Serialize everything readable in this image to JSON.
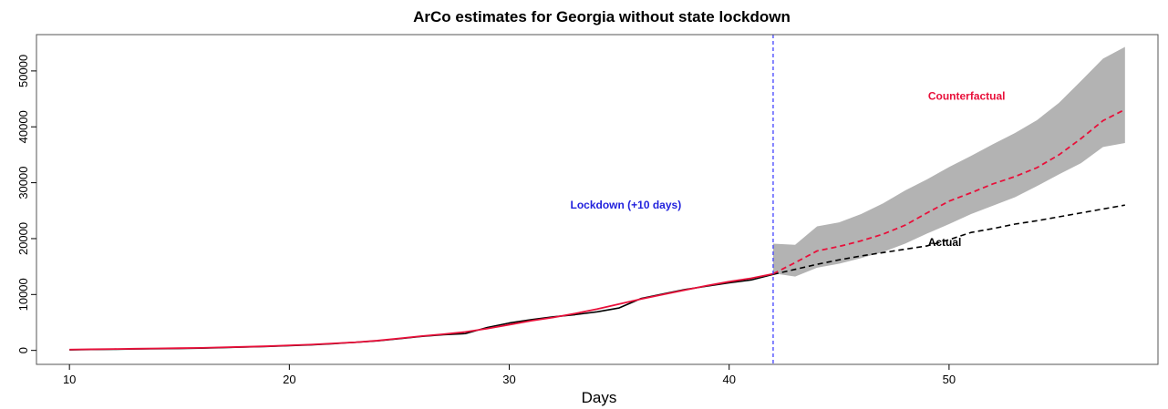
{
  "chart_data": {
    "type": "line",
    "title": "ArCo estimates for Georgia without state lockdown",
    "xlabel": "Days",
    "ylabel": "",
    "xlim": [
      8.5,
      59.5
    ],
    "ylim": [
      -2500,
      56500
    ],
    "x_ticks": [
      10,
      20,
      30,
      40,
      50
    ],
    "y_ticks": [
      0,
      10000,
      20000,
      30000,
      40000,
      50000
    ],
    "grid": false,
    "legend": "none",
    "intervention_x": 42,
    "colors": {
      "counterfactual": "#e8103a",
      "actual": "#000000",
      "band": "#b3b3b3",
      "intervention": "#3333ff"
    },
    "annotations": [
      {
        "text": "Lockdown (+10 days)",
        "x": 35.3,
        "y": 26000,
        "color": "#2222dd"
      },
      {
        "text": "Counterfactual",
        "x": 50.8,
        "y": 45500,
        "color": "#e8103a"
      },
      {
        "text": "Actual",
        "x": 49.8,
        "y": 19300,
        "color": "#000000"
      }
    ],
    "series": [
      {
        "name": "Actual",
        "style": "solid-then-dashed",
        "x": [
          10,
          11,
          12,
          13,
          14,
          15,
          16,
          17,
          18,
          19,
          20,
          21,
          22,
          23,
          24,
          25,
          26,
          27,
          28,
          29,
          30,
          31,
          32,
          33,
          34,
          35,
          36,
          37,
          38,
          39,
          40,
          41,
          42,
          43,
          44,
          45,
          46,
          47,
          48,
          49,
          50,
          51,
          52,
          53,
          54,
          55,
          56,
          57,
          58
        ],
        "values": [
          100,
          150,
          200,
          250,
          300,
          350,
          400,
          500,
          600,
          700,
          850,
          1000,
          1200,
          1450,
          1700,
          2100,
          2500,
          2800,
          3000,
          4100,
          4900,
          5500,
          6000,
          6400,
          6900,
          7600,
          9300,
          10100,
          10900,
          11500,
          12100,
          12600,
          13600,
          14500,
          15400,
          16200,
          16900,
          17500,
          18100,
          18700,
          19800,
          21100,
          21800,
          22600,
          23200,
          23900,
          24600,
          25300,
          26000
        ]
      },
      {
        "name": "Counterfactual",
        "style": "solid-then-dashed",
        "x": [
          10,
          11,
          12,
          13,
          14,
          15,
          16,
          17,
          18,
          19,
          20,
          21,
          22,
          23,
          24,
          25,
          26,
          27,
          28,
          29,
          30,
          31,
          32,
          33,
          34,
          35,
          36,
          37,
          38,
          39,
          40,
          41,
          42,
          43,
          44,
          45,
          46,
          47,
          48,
          49,
          50,
          51,
          52,
          53,
          54,
          55,
          56,
          57,
          58
        ],
        "values": [
          150,
          200,
          250,
          300,
          350,
          400,
          450,
          550,
          650,
          750,
          900,
          1050,
          1250,
          1450,
          1750,
          2150,
          2550,
          2900,
          3300,
          3900,
          4600,
          5300,
          5900,
          6600,
          7400,
          8300,
          9200,
          10000,
          10800,
          11600,
          12300,
          12900,
          13700,
          15700,
          17800,
          18600,
          19600,
          20800,
          22400,
          24600,
          26700,
          28200,
          29800,
          31100,
          32700,
          35000,
          37900,
          41100,
          43100
        ]
      },
      {
        "name": "band-upper",
        "x": [
          42,
          43,
          44,
          45,
          46,
          47,
          48,
          49,
          50,
          51,
          52,
          53,
          54,
          55,
          56,
          57,
          58
        ],
        "values": [
          19100,
          18900,
          22200,
          22900,
          24400,
          26300,
          28600,
          30600,
          32800,
          34800,
          36900,
          38900,
          41200,
          44300,
          48200,
          52200,
          54300
        ]
      },
      {
        "name": "band-lower",
        "x": [
          42,
          43,
          44,
          45,
          46,
          47,
          48,
          49,
          50,
          51,
          52,
          53,
          54,
          55,
          56,
          57,
          58
        ],
        "values": [
          13800,
          13200,
          14800,
          15500,
          16500,
          17600,
          19100,
          20900,
          22600,
          24400,
          25900,
          27400,
          29400,
          31500,
          33500,
          36400,
          37100
        ]
      }
    ]
  }
}
